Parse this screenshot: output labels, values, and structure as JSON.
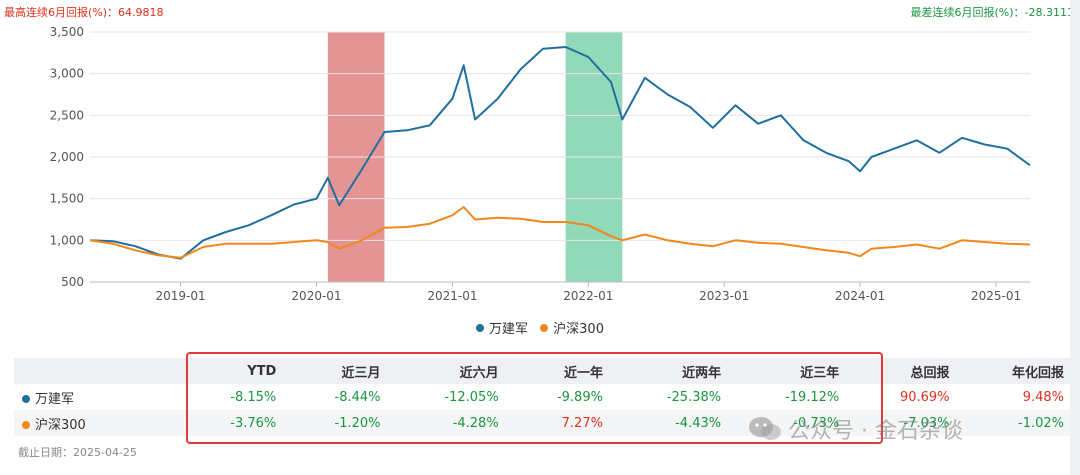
{
  "header": {
    "best_label": "最高连续6月回报(%)",
    "best_value": "64.9818",
    "worst_label": "最差连续6月回报(%)",
    "worst_value": "-28.3111"
  },
  "colors": {
    "fund": "#1f6f9f",
    "index": "#f0891a",
    "highlight_best": "#d96b6b",
    "highlight_worst": "#5fc79a",
    "positive": "#e0301e",
    "negative": "#1a9641"
  },
  "chart_data": {
    "type": "line",
    "ylim": [
      500,
      3500
    ],
    "yticks": [
      "500",
      "1,000",
      "1,500",
      "2,000",
      "2,500",
      "3,000",
      "3,500"
    ],
    "xticks": [
      "2019-01",
      "2020-01",
      "2021-01",
      "2022-01",
      "2023-01",
      "2024-01",
      "2025-01"
    ],
    "xrange": [
      "2018-05",
      "2025-04"
    ],
    "highlights": [
      {
        "kind": "best",
        "start": "2020-02",
        "end": "2020-07"
      },
      {
        "kind": "worst",
        "start": "2021-11",
        "end": "2022-04"
      }
    ],
    "x": [
      "2018-05",
      "2018-07",
      "2018-09",
      "2018-11",
      "2019-01",
      "2019-03",
      "2019-05",
      "2019-07",
      "2019-09",
      "2019-11",
      "2020-01",
      "2020-02",
      "2020-03",
      "2020-05",
      "2020-07",
      "2020-09",
      "2020-11",
      "2021-01",
      "2021-02",
      "2021-03",
      "2021-05",
      "2021-07",
      "2021-09",
      "2021-11",
      "2022-01",
      "2022-03",
      "2022-04",
      "2022-06",
      "2022-08",
      "2022-10",
      "2022-12",
      "2023-02",
      "2023-04",
      "2023-06",
      "2023-08",
      "2023-10",
      "2023-12",
      "2024-01",
      "2024-02",
      "2024-04",
      "2024-06",
      "2024-08",
      "2024-10",
      "2024-12",
      "2025-02",
      "2025-04"
    ],
    "series": [
      {
        "name": "万建军",
        "values": [
          1000,
          990,
          930,
          830,
          780,
          1000,
          1100,
          1180,
          1300,
          1430,
          1500,
          1750,
          1420,
          1850,
          2300,
          2320,
          2380,
          2700,
          3100,
          2450,
          2700,
          3050,
          3300,
          3320,
          3200,
          2900,
          2450,
          2950,
          2750,
          2600,
          2350,
          2620,
          2400,
          2500,
          2200,
          2050,
          1950,
          1830,
          2000,
          2100,
          2200,
          2050,
          2230,
          2150,
          2100,
          1900
        ]
      },
      {
        "name": "沪深300",
        "values": [
          1000,
          960,
          880,
          820,
          790,
          920,
          960,
          960,
          960,
          980,
          1000,
          980,
          900,
          1000,
          1150,
          1160,
          1200,
          1300,
          1400,
          1250,
          1270,
          1260,
          1220,
          1220,
          1180,
          1050,
          1000,
          1070,
          1000,
          960,
          930,
          1000,
          970,
          960,
          920,
          880,
          850,
          810,
          900,
          920,
          950,
          900,
          1000,
          980,
          960,
          950
        ]
      }
    ]
  },
  "table": {
    "headers": [
      "",
      "YTD",
      "近三月",
      "近六月",
      "近一年",
      "近两年",
      "近三年",
      "总回报",
      "年化回报"
    ],
    "rows": [
      {
        "name": "万建军",
        "values": [
          "-8.15%",
          "-8.44%",
          "-12.05%",
          "-9.89%",
          "-25.38%",
          "-19.12%",
          "90.69%",
          "9.48%"
        ]
      },
      {
        "name": "沪深300",
        "values": [
          "-3.76%",
          "-1.20%",
          "-4.28%",
          "7.27%",
          "-4.43%",
          "-0.73%",
          "-7.03%",
          "-1.02%"
        ]
      }
    ]
  },
  "watermark": "公众号 · 金石杂谈",
  "as_of": "截止日期：2025-04-25"
}
